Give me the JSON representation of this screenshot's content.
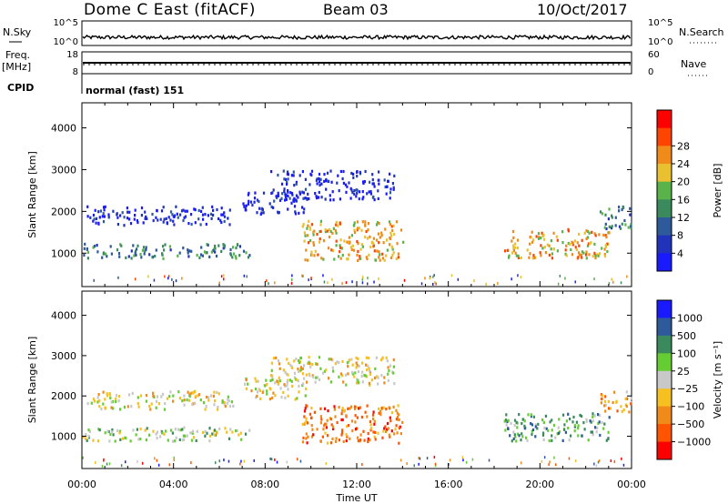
{
  "header": {
    "title": "Dome C East (fitACF)",
    "beam": "Beam 03",
    "date": "10/Oct/2017"
  },
  "top_panels": {
    "nsky_label": "N.Sky",
    "nsky_ticks": [
      "10^5",
      "10^0"
    ],
    "nsearch_label": "N.Search",
    "nsearch_ticks": [
      "10^5",
      "10^0"
    ],
    "freq_label": "Freq.",
    "freq_unit": "[MHz]",
    "freq_ticks": [
      "18",
      "8"
    ],
    "nave_label": "Nave",
    "nave_ticks": [
      "60",
      "0"
    ],
    "cpid_label": "CPID",
    "cpid_text": "normal (fast) 151"
  },
  "colors": {
    "power": [
      "#1a1aff",
      "#2233bb",
      "#2e5a9c",
      "#3b8a5e",
      "#5ab24a",
      "#e8c030",
      "#f08a18",
      "#ff4400",
      "#ff0000"
    ],
    "velocity": [
      "#ff0000",
      "#ff5500",
      "#f08a18",
      "#f5c020",
      "#c8c8c8",
      "#66cc33",
      "#3b8a5e",
      "#2e5a9c",
      "#1a1aff"
    ]
  },
  "chart_data": [
    {
      "type": "heatmap",
      "panel": "power",
      "ylabel": "Slant Range [km]",
      "y_ticks": [
        1000,
        2000,
        3000,
        4000
      ],
      "ylim": [
        200,
        4600
      ],
      "xlim": [
        0,
        24
      ],
      "x_ticks": [
        "00:00",
        "04:00",
        "08:00",
        "12:00",
        "16:00",
        "20:00",
        "00:00"
      ],
      "colorbar_label": "Power [dB]",
      "colorbar_ticks": [
        "4",
        "8",
        "12",
        "16",
        "20",
        "24",
        "28"
      ],
      "regions": [
        {
          "t0": 0.0,
          "t1": 7.3,
          "r0": 900,
          "r1": 1250,
          "level": 3
        },
        {
          "t0": 0.2,
          "t1": 6.6,
          "r0": 1700,
          "r1": 2150,
          "level": 1
        },
        {
          "t0": 7.0,
          "t1": 9.8,
          "r0": 1950,
          "r1": 2500,
          "level": 1
        },
        {
          "t0": 8.2,
          "t1": 13.6,
          "r0": 2300,
          "r1": 3000,
          "level": 1
        },
        {
          "t0": 9.6,
          "t1": 14.0,
          "r0": 850,
          "r1": 1800,
          "level": 6
        },
        {
          "t0": 18.4,
          "t1": 23.0,
          "r0": 900,
          "r1": 1600,
          "level": 6
        },
        {
          "t0": 22.6,
          "t1": 24.0,
          "r0": 1600,
          "r1": 2150,
          "level": 3
        }
      ]
    },
    {
      "type": "heatmap",
      "panel": "velocity",
      "ylabel": "Slant Range [km]",
      "y_ticks": [
        1000,
        2000,
        3000,
        4000
      ],
      "ylim": [
        200,
        4600
      ],
      "xlim": [
        0,
        24
      ],
      "x_ticks": [
        "00:00",
        "04:00",
        "08:00",
        "12:00",
        "16:00",
        "20:00",
        "00:00"
      ],
      "xlabel": "Time UT",
      "colorbar_label": "Velocity [m s⁻¹]",
      "colorbar_ticks": [
        "1000",
        "500",
        "100",
        "25",
        "−25",
        "−100",
        "−500",
        "−1000"
      ],
      "regions": [
        {
          "t0": 0.0,
          "t1": 7.3,
          "r0": 900,
          "r1": 1250,
          "level": 5
        },
        {
          "t0": 0.2,
          "t1": 6.6,
          "r0": 1700,
          "r1": 2150,
          "level": 4
        },
        {
          "t0": 7.0,
          "t1": 9.8,
          "r0": 1950,
          "r1": 2500,
          "level": 4
        },
        {
          "t0": 8.2,
          "t1": 13.6,
          "r0": 2300,
          "r1": 3000,
          "level": 4
        },
        {
          "t0": 9.6,
          "t1": 14.0,
          "r0": 850,
          "r1": 1800,
          "level": 2
        },
        {
          "t0": 18.4,
          "t1": 23.0,
          "r0": 900,
          "r1": 1600,
          "level": 6
        },
        {
          "t0": 22.6,
          "t1": 24.0,
          "r0": 1600,
          "r1": 2150,
          "level": 3
        }
      ]
    }
  ]
}
